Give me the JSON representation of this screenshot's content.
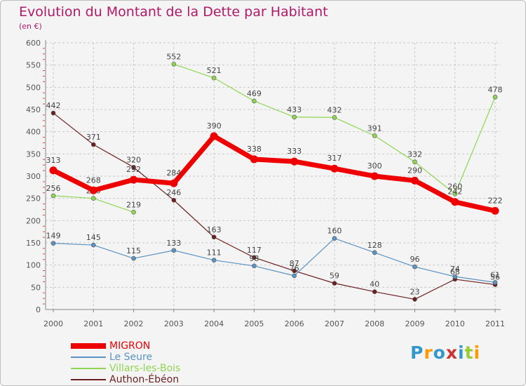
{
  "title": "Evolution du Montant de la Dette par Habitant",
  "subtitle": "(en €)",
  "logo": {
    "text": "Proxiti",
    "colors": [
      "#3399cc",
      "#ff9900",
      "#3399cc",
      "#cc3333",
      "#3399cc",
      "#99cc33",
      "#ff9900"
    ]
  },
  "chart_data": {
    "type": "line",
    "x": [
      "2000",
      "2001",
      "2002",
      "2003",
      "2004",
      "2005",
      "2006",
      "2007",
      "2008",
      "2009",
      "2010",
      "2011"
    ],
    "ylim": [
      0,
      600
    ],
    "yticks": [
      0,
      50,
      100,
      150,
      200,
      250,
      300,
      350,
      400,
      450,
      500,
      550,
      600
    ],
    "grid": true,
    "legend_position": "bottom-left",
    "series": [
      {
        "name": "Authon-Ébéon",
        "color": "#6b1f1f",
        "values": [
          442,
          371,
          320,
          246,
          163,
          117,
          87,
          59,
          40,
          23,
          68,
          56
        ],
        "labels": [
          "442",
          "371",
          "320",
          "246",
          "163",
          "117",
          "87",
          "59",
          "40",
          "23",
          "68",
          "56"
        ]
      },
      {
        "name": "Le Seure",
        "color": "#5b93c2",
        "values": [
          149,
          145,
          115,
          133,
          111,
          98,
          76,
          160,
          128,
          96,
          74,
          61
        ],
        "labels": [
          "149",
          "145",
          "115",
          "133",
          "111",
          "98",
          "76",
          "160",
          "128",
          "96",
          "74",
          "61"
        ]
      },
      {
        "name": "Villars-les-Bois",
        "color": "#8ed652",
        "values": [
          256,
          250,
          219,
          552,
          521,
          469,
          433,
          432,
          391,
          332,
          260,
          478
        ],
        "labels": [
          "256",
          "250",
          "219",
          "552",
          "521",
          "469",
          "433",
          "432",
          "391",
          "332",
          "260",
          "478"
        ],
        "gap_after_index": 2
      },
      {
        "name": "MIGRON",
        "color": "#ee0000",
        "thick": true,
        "values": [
          313,
          268,
          292,
          284,
          390,
          338,
          333,
          317,
          300,
          290,
          242,
          222
        ],
        "labels": [
          "313",
          "268",
          "292",
          "284",
          "390",
          "338",
          "333",
          "317",
          "300",
          "290",
          "242",
          "222"
        ]
      }
    ],
    "legend_order": [
      "MIGRON",
      "Le Seure",
      "Villars-les-Bois",
      "Authon-Ébéon"
    ]
  }
}
